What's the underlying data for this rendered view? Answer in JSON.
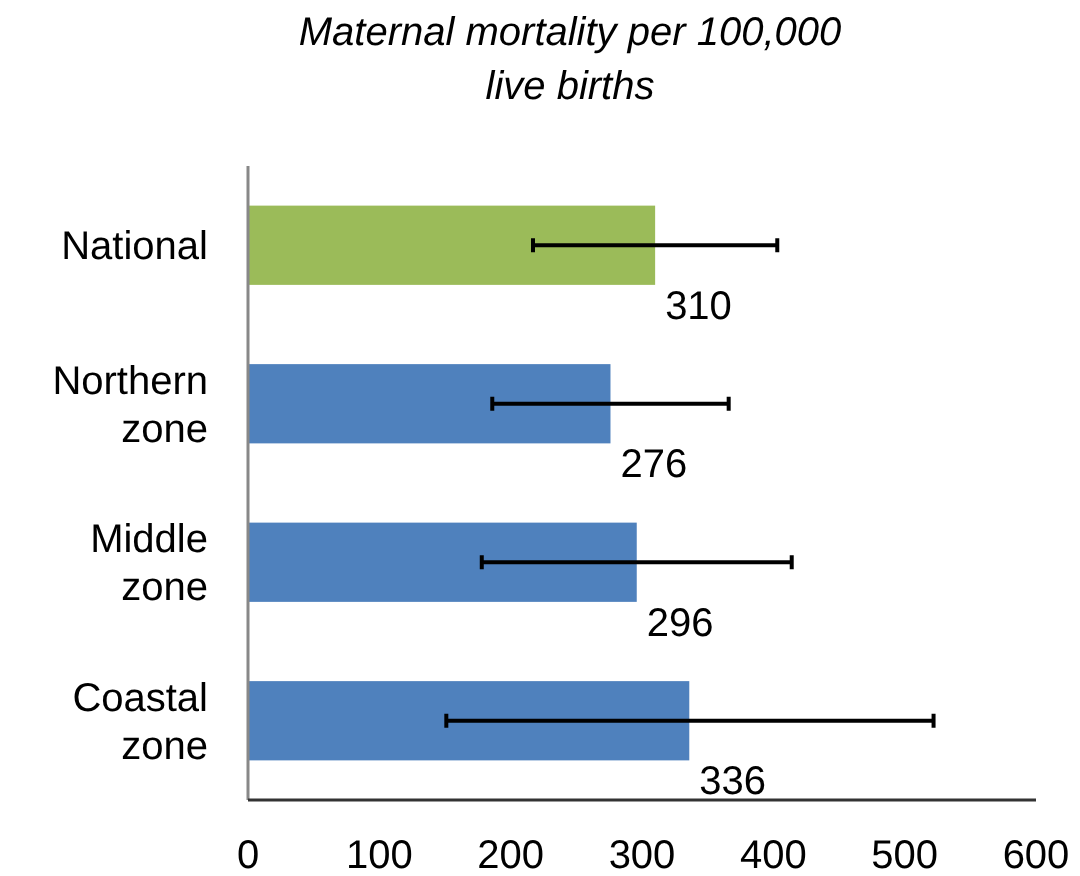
{
  "chart_data": {
    "type": "bar",
    "orientation": "horizontal",
    "title": "Maternal mortality per 100,000 live births",
    "categories": [
      "National",
      "Northern zone",
      "Middle zone",
      "Coastal zone"
    ],
    "values": [
      310,
      276,
      296,
      336
    ],
    "colors": [
      "#9bbb59",
      "#4f81bd",
      "#4f81bd",
      "#4f81bd"
    ],
    "errors": [
      [
        217,
        403
      ],
      [
        186,
        366
      ],
      [
        178,
        414
      ],
      [
        151,
        522
      ]
    ],
    "data_labels": true,
    "xlim": [
      0,
      600
    ],
    "xticks": [
      0,
      100,
      200,
      300,
      400,
      500,
      600
    ],
    "grid": false
  }
}
